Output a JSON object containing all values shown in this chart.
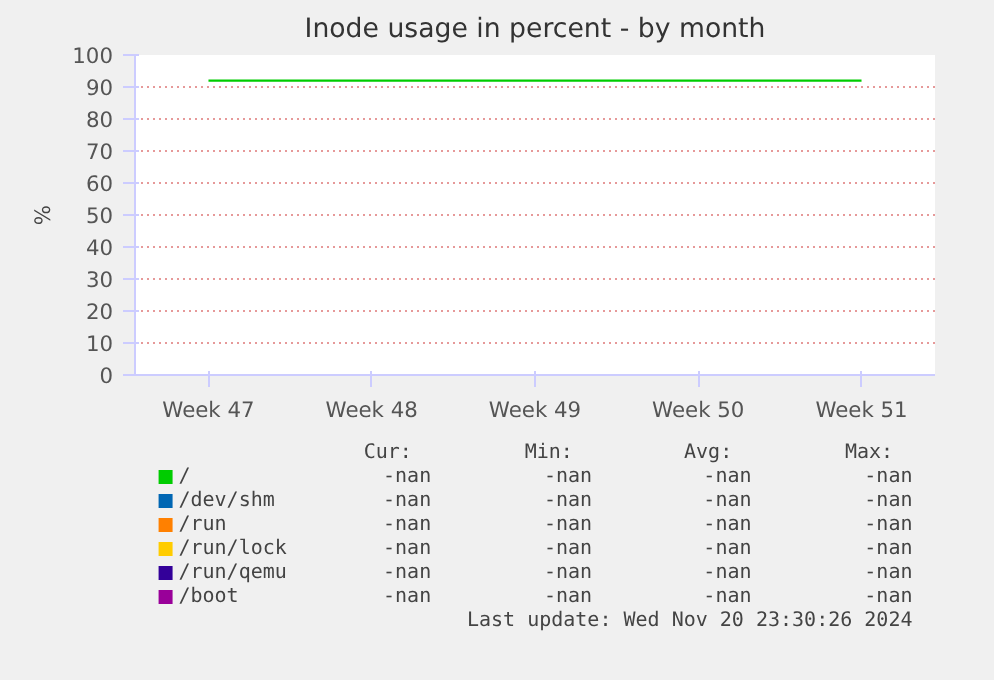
{
  "chart_data": {
    "type": "line",
    "title": "Inode usage in percent - by month",
    "ylabel": "%",
    "categories": [
      "Week 47",
      "Week 48",
      "Week 49",
      "Week 50",
      "Week 51"
    ],
    "ylim": [
      0,
      100
    ],
    "yticks": [
      0,
      10,
      20,
      30,
      40,
      50,
      60,
      70,
      80,
      90,
      100
    ],
    "grid": "y",
    "legend": "bottom",
    "series": [
      {
        "name": "/",
        "color": "#00cc00",
        "values": [
          92,
          92,
          92,
          92,
          92
        ]
      },
      {
        "name": "/dev/shm",
        "color": "#0066b3",
        "values": [
          null,
          null,
          null,
          null,
          null
        ]
      },
      {
        "name": "/run",
        "color": "#ff8000",
        "values": [
          null,
          null,
          null,
          null,
          null
        ]
      },
      {
        "name": "/run/lock",
        "color": "#ffcc00",
        "values": [
          null,
          null,
          null,
          null,
          null
        ]
      },
      {
        "name": "/run/qemu",
        "color": "#330099",
        "values": [
          null,
          null,
          null,
          null,
          null
        ]
      },
      {
        "name": "/boot",
        "color": "#990099",
        "values": [
          null,
          null,
          null,
          null,
          null
        ]
      }
    ],
    "annotations": [
      "Cur:",
      "Min:",
      "Avg:",
      "Max:",
      "-nan",
      "-nan",
      "-nan",
      "-nan",
      "-nan",
      "-nan",
      "-nan",
      "-nan",
      "-nan",
      "-nan",
      "-nan",
      "-nan",
      "-nan",
      "-nan",
      "-nan",
      "-nan",
      "-nan",
      "-nan",
      "-nan",
      "-nan",
      "-nan",
      "-nan",
      "-nan",
      "-nan",
      "Last update: Wed Nov 20 23:30:26 2024"
    ]
  }
}
